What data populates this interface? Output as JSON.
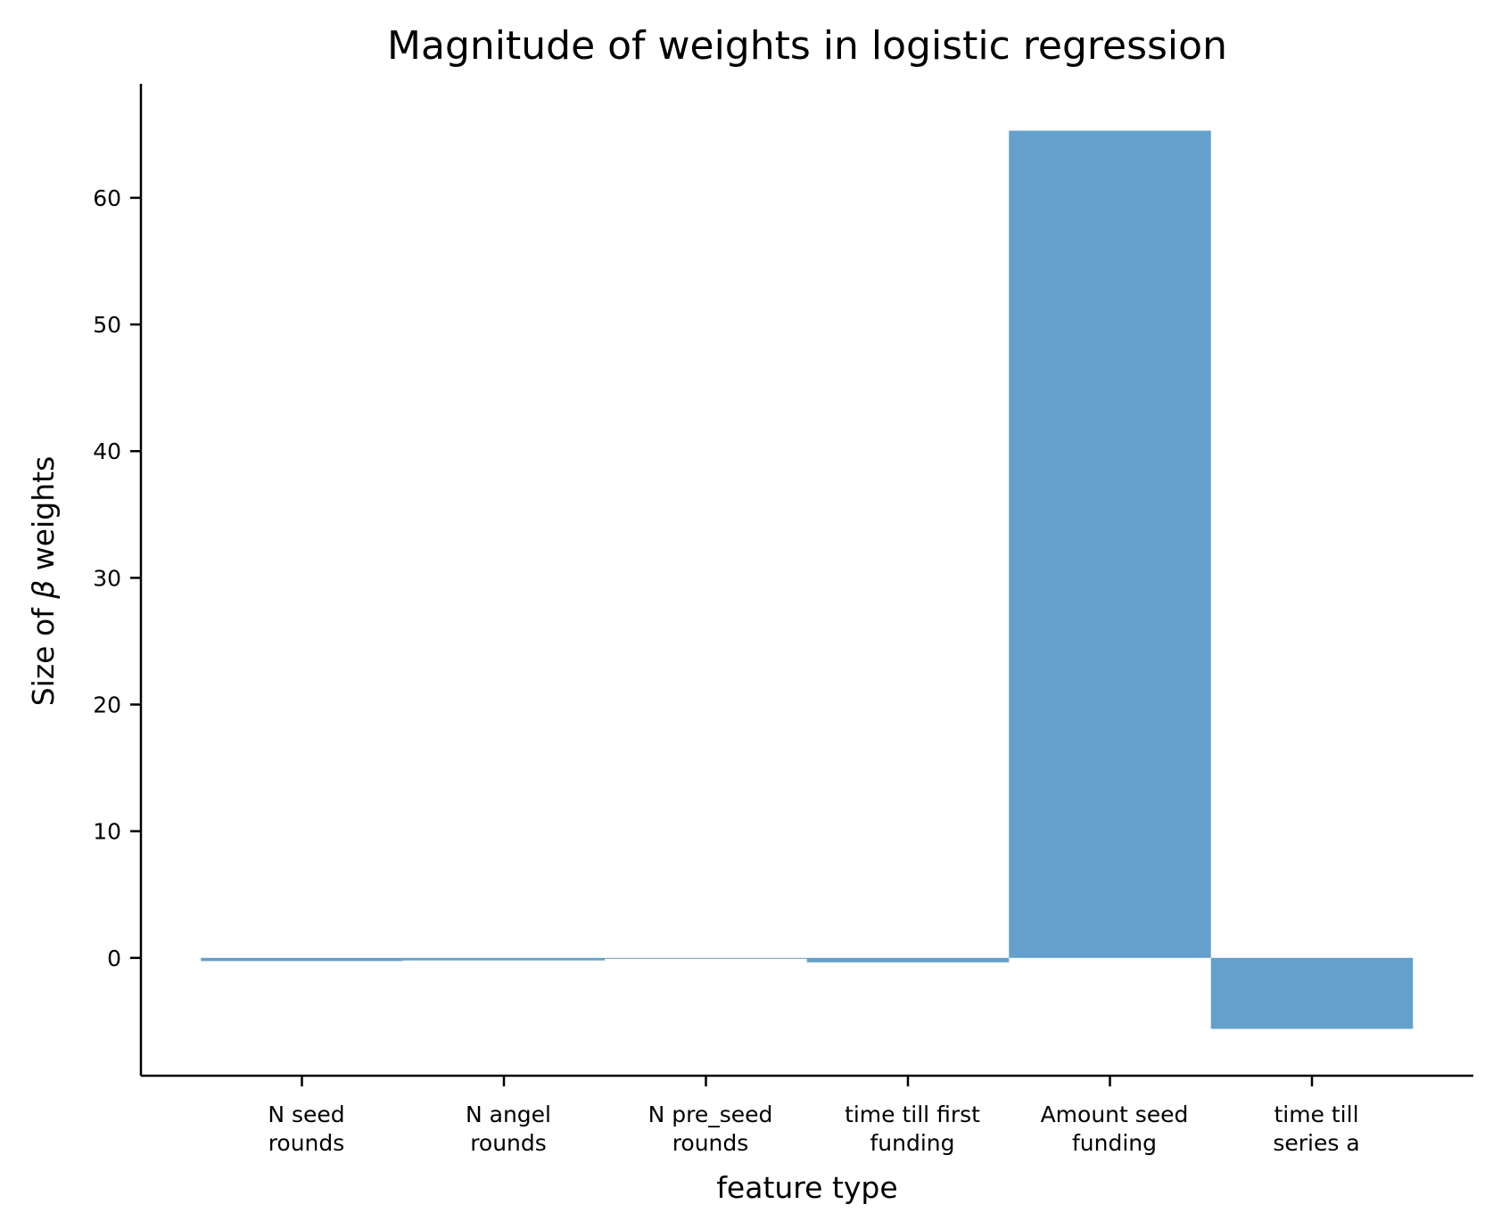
{
  "chart_data": {
    "type": "bar",
    "title": "Magnitude of weights in logistic regression",
    "xlabel": "feature type",
    "ylabel_prefix": "Size of ",
    "ylabel_symbol": "β",
    "ylabel_suffix": " weights",
    "categories": [
      [
        "N seed",
        "rounds"
      ],
      [
        "N angel",
        "rounds"
      ],
      [
        "N pre_seed",
        "rounds"
      ],
      [
        "time till first",
        "funding"
      ],
      [
        "Amount seed",
        "funding"
      ],
      [
        "time till",
        "series a"
      ]
    ],
    "values": [
      -0.25,
      -0.2,
      -0.05,
      -0.35,
      65.3,
      -5.6
    ],
    "ylim": [
      -9.3,
      69
    ],
    "yticks": [
      0,
      10,
      20,
      30,
      40,
      50,
      60
    ],
    "grid": false,
    "legend": "none",
    "bar_color": "#63a0cb"
  }
}
